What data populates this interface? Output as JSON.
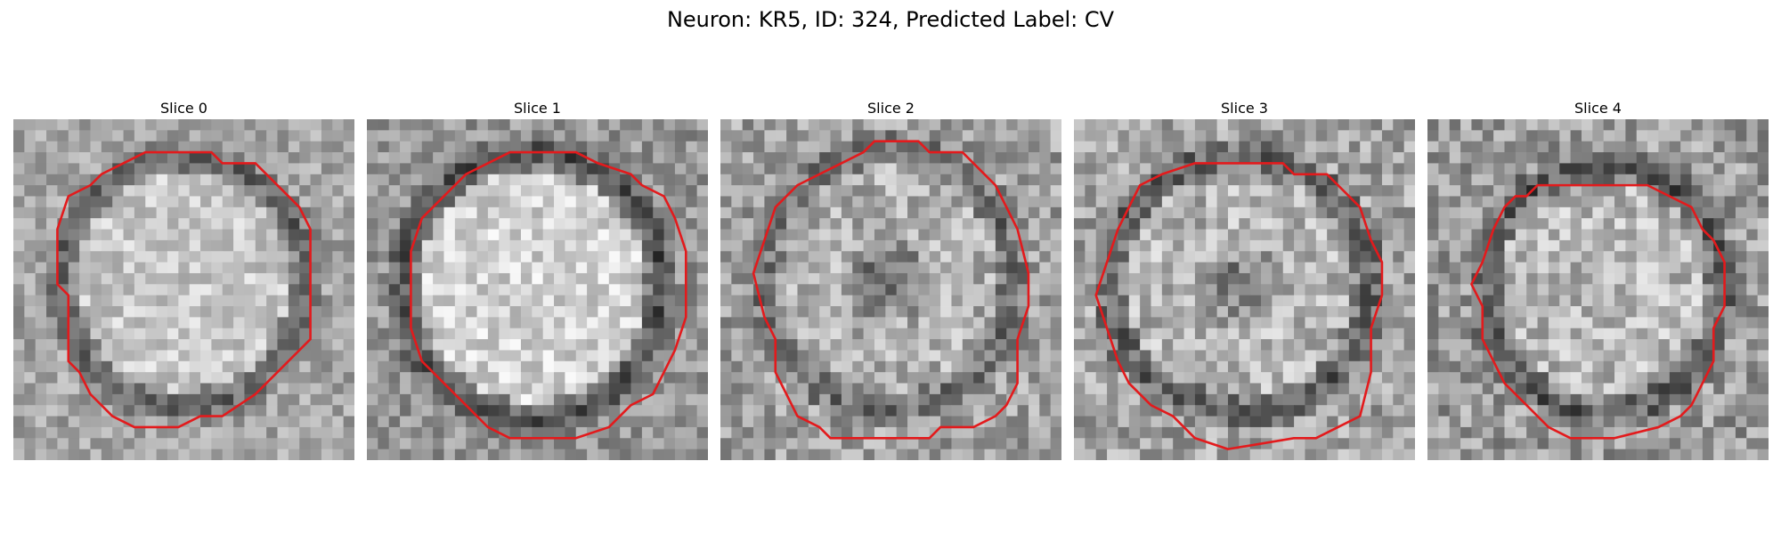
{
  "figure": {
    "title": "Neuron: KR5, ID: 324, Predicted Label: CV"
  },
  "panels": [
    {
      "title": "Slice 0"
    },
    {
      "title": "Slice 1"
    },
    {
      "title": "Slice 2"
    },
    {
      "title": "Slice 3"
    },
    {
      "title": "Slice 4"
    }
  ],
  "colors": {
    "contour": "#e31a1c",
    "background": "#ffffff"
  }
}
